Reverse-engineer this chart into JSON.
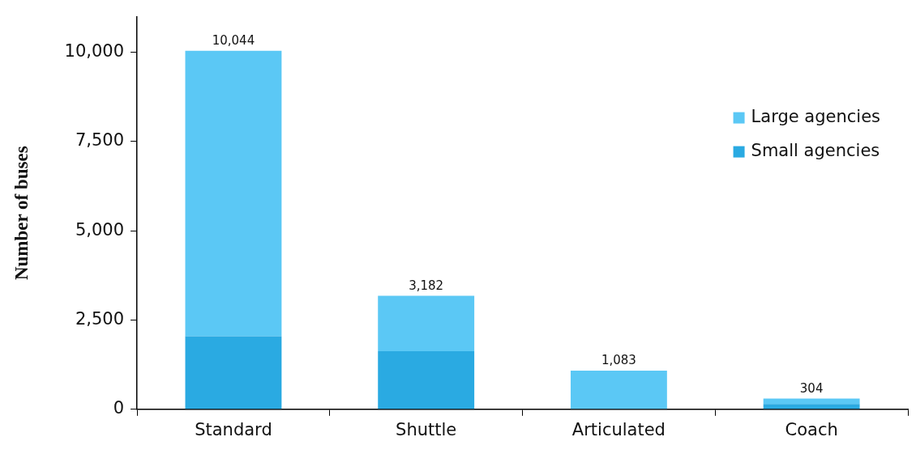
{
  "chart_data": {
    "type": "bar",
    "ylabel": "Number of buses",
    "categories": [
      "Standard",
      "Shuttle",
      "Articulated",
      "Coach"
    ],
    "stacked": true,
    "series": [
      {
        "name": "Small agencies",
        "color": "#2aaae2",
        "values": [
          2050,
          1630,
          0,
          150
        ]
      },
      {
        "name": "Large agencies",
        "color": "#5bc8f5",
        "values": [
          7994,
          1552,
          1083,
          154
        ]
      }
    ],
    "totals": [
      "10,044",
      "3,182",
      "1,083",
      "304"
    ],
    "ylim": [
      0,
      11000
    ],
    "yticks": [
      0,
      {
        "value": 2500,
        "label": "2,500"
      },
      {
        "value": 5000,
        "label": "5,000"
      },
      {
        "value": 7500,
        "label": "7,500"
      },
      {
        "value": 10000,
        "label": "10,000"
      }
    ],
    "grid": false,
    "legend": "top right"
  }
}
